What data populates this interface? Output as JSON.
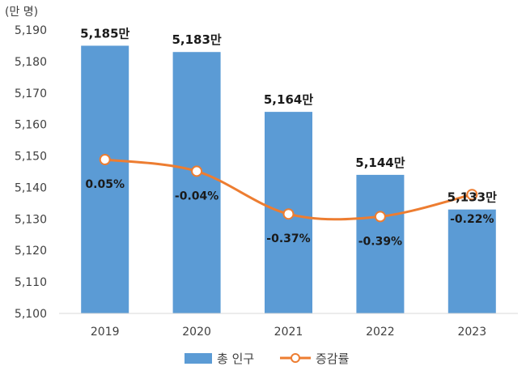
{
  "chart_data": {
    "type": "bar",
    "y_unit_label": "(만 명)",
    "categories": [
      "2019",
      "2020",
      "2021",
      "2022",
      "2023"
    ],
    "ylim": [
      5100,
      5190
    ],
    "yticks": [
      5100,
      5110,
      5120,
      5130,
      5140,
      5150,
      5160,
      5170,
      5180,
      5190
    ],
    "ytick_labels": [
      "5,100",
      "5,110",
      "5,120",
      "5,130",
      "5,140",
      "5,150",
      "5,160",
      "5,170",
      "5,180",
      "5,190"
    ],
    "series": [
      {
        "name": "총 인구",
        "type": "bar",
        "color": "#5b9bd5",
        "values": [
          5185,
          5183,
          5164,
          5144,
          5133
        ],
        "labels": [
          "5,185만",
          "5,183만",
          "5,164만",
          "5,144만",
          "5,133만"
        ]
      },
      {
        "name": "증감률",
        "type": "line",
        "color": "#ed7d31",
        "values_pct": [
          0.05,
          -0.04,
          -0.37,
          -0.39,
          -0.22
        ],
        "labels": [
          "0.05%",
          "-0.04%",
          "-0.37%",
          "-0.39%",
          "-0.22%"
        ]
      }
    ],
    "grid": false,
    "legend_position": "bottom"
  }
}
